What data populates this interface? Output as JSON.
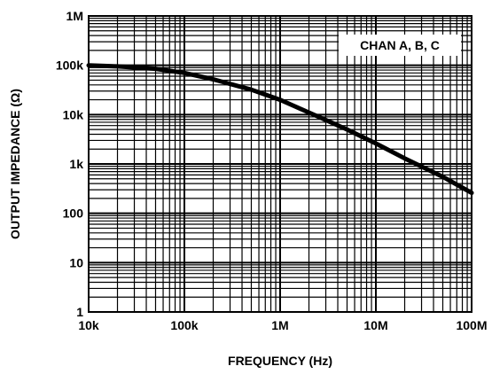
{
  "chart_data": {
    "type": "line",
    "xlabel": "FREQUENCY (Hz)",
    "ylabel": "OUTPUT IMPEDANCE (Ω)",
    "x_scale": "log",
    "y_scale": "log",
    "xlim": [
      10000,
      100000000
    ],
    "ylim": [
      1,
      1000000
    ],
    "x_tick_labels": [
      "10k",
      "100k",
      "1M",
      "10M",
      "100M"
    ],
    "y_tick_labels": [
      "1",
      "10",
      "100",
      "1k",
      "10k",
      "100k",
      "1M"
    ],
    "grid": true,
    "legend_position": "top-right",
    "series": [
      {
        "name": "CHAN A, B, C",
        "x": [
          10000,
          20000,
          50000,
          100000,
          200000,
          500000,
          1000000,
          2000000,
          5000000,
          10000000,
          20000000,
          50000000,
          100000000
        ],
        "y": [
          100000,
          95000,
          85000,
          70000,
          52000,
          32000,
          20000,
          11000,
          5000,
          2600,
          1300,
          550,
          260
        ]
      }
    ]
  }
}
